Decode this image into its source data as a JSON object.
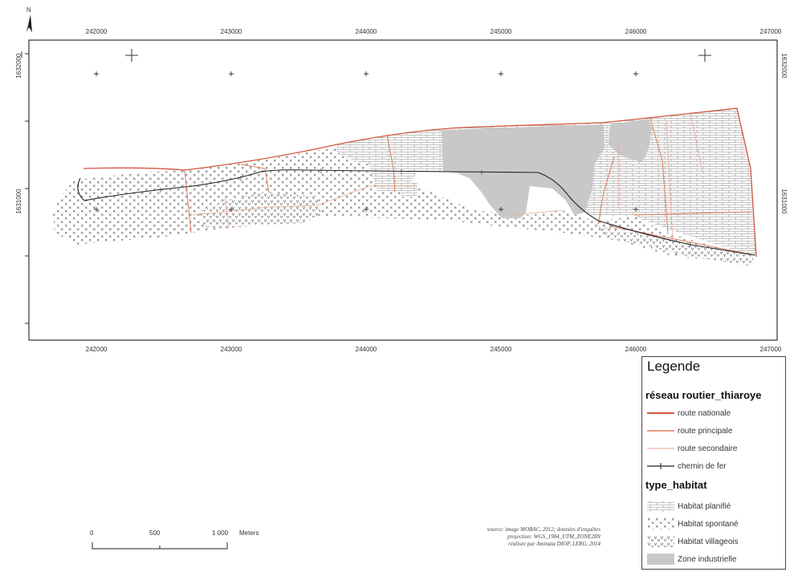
{
  "north_arrow": {
    "label": "N"
  },
  "grid": {
    "x_labels": [
      "242000",
      "243000",
      "244000",
      "245000",
      "246000",
      "247000"
    ],
    "y_labels": [
      "1632000",
      "1631000"
    ]
  },
  "legend": {
    "title": "Legende",
    "groups": [
      {
        "title": "réseau routier_thiaroye",
        "items": [
          {
            "label": "route nationale",
            "symbol": "line",
            "color": "#d2553c"
          },
          {
            "label": "route principale",
            "symbol": "line",
            "color": "#e07a5a"
          },
          {
            "label": "route secondaire",
            "symbol": "line",
            "color": "#e8a590"
          },
          {
            "label": "chemin de fer",
            "symbol": "rail",
            "color": "#222222"
          }
        ]
      },
      {
        "title": "type_habitat",
        "items": [
          {
            "label": "Habitat planifié",
            "symbol": "brick-pattern"
          },
          {
            "label": "Habitat spontané",
            "symbol": "cross-pattern"
          },
          {
            "label": "Habitat villageois",
            "symbol": "v-pattern"
          },
          {
            "label": "Zone industrielle",
            "symbol": "solid",
            "color": "#c8c8c8"
          }
        ]
      }
    ]
  },
  "scale_bar": {
    "labels": [
      "0",
      "500",
      "1 000"
    ],
    "unit": "Meters"
  },
  "source_note": [
    "source: image MOBAC, 2012; données d'enquêtes",
    "projection: WGS_1984_UTM_ZONE28N",
    "réalisée par Aminata DIOP, LERG, 2014"
  ],
  "colors": {
    "route_nationale": "#d2553c",
    "route_principale": "#e07a5a",
    "route_secondaire": "#e8a590",
    "chemin_de_fer": "#222222",
    "zone_industrielle": "#c8c8c8",
    "pattern_ink": "#777777"
  }
}
